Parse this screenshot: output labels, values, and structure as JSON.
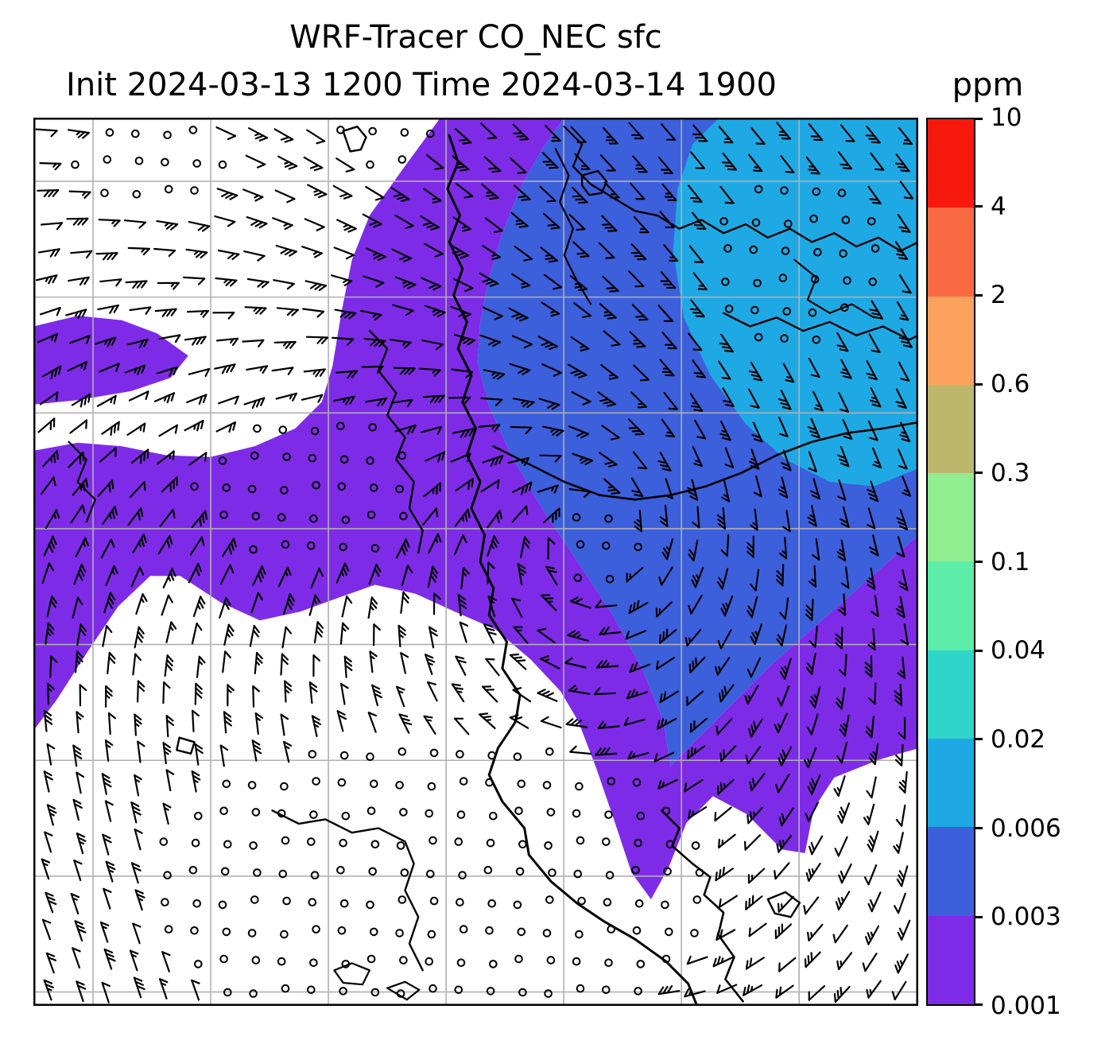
{
  "title": "WRF-Tracer CO_NEC sfc",
  "subtitle": "Init 2024-03-13 1200 Time 2024-03-14 1900",
  "colorbar": {
    "unit": "ppm",
    "levels": [
      "0.001",
      "0.003",
      "0.006",
      "0.02",
      "0.04",
      "0.1",
      "0.3",
      "0.6",
      "2",
      "4",
      "10"
    ],
    "colors": [
      "#7e2be8",
      "#3c5fdc",
      "#1fa9e4",
      "#2fd5c8",
      "#5ceea8",
      "#90ee90",
      "#bdb76b",
      "#fba25c",
      "#fa6a42",
      "#f8190d"
    ]
  },
  "chart_data": {
    "type": "heatmap",
    "subtype": "filled-contour-map-with-wind-barbs",
    "title": "WRF-Tracer CO_NEC sfc",
    "variable": "CO_NEC",
    "level": "sfc",
    "units": "ppm",
    "init_time": "2024-03-13 1200",
    "valid_time": "2024-03-14 1900",
    "contour_levels_ppm": [
      0.001,
      0.003,
      0.006,
      0.02,
      0.04,
      0.1,
      0.3,
      0.6,
      2,
      4,
      10
    ],
    "fill_colors": [
      "#7e2be8",
      "#3c5fdc",
      "#1fa9e4",
      "#2fd5c8",
      "#5ceea8",
      "#90ee90",
      "#bdb76b",
      "#fba25c",
      "#fa6a42",
      "#f8190d"
    ],
    "background_below_min": "#ffffff",
    "grid": {
      "x0": 0.0674,
      "dx": 0.133,
      "y0": 0.0716,
      "dy": 0.1304,
      "n_vertical": 8,
      "n_horizontal": 8,
      "color": "#b0b0b0"
    },
    "regions": [
      {
        "range": "0.001-0.003-main",
        "level_index": 0,
        "points": [
          [
            46,
            0
          ],
          [
            60,
            0
          ],
          [
            57.5,
            3.5
          ],
          [
            55,
            8
          ],
          [
            53,
            13
          ],
          [
            51.5,
            18
          ],
          [
            50.5,
            23
          ],
          [
            50.2,
            27.5
          ],
          [
            51.5,
            32.5
          ],
          [
            54,
            38
          ],
          [
            57.5,
            44
          ],
          [
            61.5,
            50
          ],
          [
            65.5,
            56
          ],
          [
            68.8,
            62
          ],
          [
            71.2,
            68
          ],
          [
            72,
            73
          ],
          [
            76.5,
            68.5
          ],
          [
            83.5,
            61.5
          ],
          [
            91.5,
            54.5
          ],
          [
            100,
            47
          ],
          [
            100,
            71
          ],
          [
            95.5,
            72.3
          ],
          [
            90.5,
            74.3
          ],
          [
            88.2,
            77.8
          ],
          [
            87.2,
            82.8
          ],
          [
            84.6,
            82.4
          ],
          [
            80.6,
            78.4
          ],
          [
            76.8,
            76.4
          ],
          [
            73.8,
            79.4
          ],
          [
            71.8,
            84.4
          ],
          [
            69.8,
            88
          ],
          [
            67.6,
            85
          ],
          [
            65.6,
            79
          ],
          [
            63.6,
            73.2
          ],
          [
            61.6,
            68
          ],
          [
            59.6,
            64.6
          ],
          [
            56.2,
            61
          ],
          [
            52.2,
            57.6
          ],
          [
            47.6,
            55.6
          ],
          [
            43.2,
            53.6
          ],
          [
            38.6,
            52.6
          ],
          [
            34.6,
            54
          ],
          [
            30.2,
            55.6
          ],
          [
            25.6,
            56.6
          ],
          [
            21.2,
            54.6
          ],
          [
            16.6,
            51.6
          ],
          [
            13.2,
            51.6
          ],
          [
            9.6,
            55
          ],
          [
            6.2,
            60
          ],
          [
            2.6,
            65.6
          ],
          [
            0,
            69
          ],
          [
            0,
            37.5
          ],
          [
            5,
            36.6
          ],
          [
            10,
            37
          ],
          [
            15,
            38
          ],
          [
            20,
            38.2
          ],
          [
            25,
            37
          ],
          [
            29.6,
            35
          ],
          [
            32.6,
            32
          ],
          [
            33.8,
            28
          ],
          [
            34.8,
            22
          ],
          [
            36,
            16
          ],
          [
            38,
            11
          ],
          [
            41.6,
            6
          ]
        ]
      },
      {
        "range": "0.001-0.003-west-band",
        "level_index": 0,
        "points": [
          [
            0,
            23.5
          ],
          [
            5,
            22.3
          ],
          [
            10,
            22.8
          ],
          [
            14,
            24.3
          ],
          [
            17.5,
            26.8
          ],
          [
            15.5,
            29.3
          ],
          [
            11,
            30.8
          ],
          [
            5,
            31.8
          ],
          [
            0,
            32.3
          ]
        ]
      },
      {
        "range": "0.003-0.006",
        "level_index": 1,
        "points": [
          [
            60,
            0
          ],
          [
            100,
            0
          ],
          [
            100,
            47
          ],
          [
            91.5,
            54.5
          ],
          [
            83.5,
            61.5
          ],
          [
            76.5,
            68.5
          ],
          [
            72,
            73
          ],
          [
            71.2,
            68
          ],
          [
            68.8,
            62
          ],
          [
            65.5,
            56
          ],
          [
            61.5,
            50
          ],
          [
            57.5,
            44
          ],
          [
            54,
            38
          ],
          [
            51.5,
            32.5
          ],
          [
            50.2,
            27.5
          ],
          [
            50.5,
            23
          ],
          [
            51.5,
            18
          ],
          [
            53,
            13
          ],
          [
            55,
            8
          ],
          [
            57.5,
            3.5
          ]
        ]
      },
      {
        "range": "0.006-0.02",
        "level_index": 2,
        "points": [
          [
            77.5,
            0
          ],
          [
            100,
            0
          ],
          [
            100,
            39.5
          ],
          [
            95,
            41.5
          ],
          [
            90,
            41
          ],
          [
            85,
            38.5
          ],
          [
            80.5,
            34.5
          ],
          [
            76.5,
            29
          ],
          [
            73.5,
            22.5
          ],
          [
            72.3,
            15
          ],
          [
            72.8,
            8
          ],
          [
            74.5,
            3
          ]
        ]
      }
    ],
    "coastlines": [
      {
        "closed": false,
        "w": 3,
        "pts": [
          [
            47,
            2
          ],
          [
            48,
            5
          ],
          [
            46.8,
            8
          ],
          [
            48.2,
            11
          ],
          [
            47,
            14
          ],
          [
            48.5,
            17
          ],
          [
            47.5,
            20
          ],
          [
            49,
            23
          ],
          [
            48,
            26
          ],
          [
            49.5,
            29
          ],
          [
            48.5,
            32
          ],
          [
            50,
            35
          ],
          [
            49,
            38
          ],
          [
            50.5,
            41
          ],
          [
            49.5,
            44
          ],
          [
            51,
            47
          ],
          [
            50.5,
            50
          ],
          [
            52,
            53
          ],
          [
            51.5,
            56
          ],
          [
            53.5,
            59
          ],
          [
            53,
            62
          ],
          [
            55,
            65
          ],
          [
            54.5,
            68
          ],
          [
            52.5,
            71
          ],
          [
            51.5,
            74
          ],
          [
            53,
            77
          ],
          [
            55.5,
            80
          ],
          [
            56,
            83
          ],
          [
            58.5,
            86
          ],
          [
            61.5,
            88.5
          ],
          [
            64.5,
            90.5
          ],
          [
            68,
            92.5
          ],
          [
            71.5,
            95
          ],
          [
            74,
            97.5
          ],
          [
            75,
            100
          ]
        ]
      },
      {
        "closed": false,
        "w": 2.4,
        "pts": [
          [
            60,
            1
          ],
          [
            62,
            3
          ],
          [
            61,
            5.5
          ],
          [
            63,
            7.5
          ],
          [
            65.5,
            9
          ],
          [
            68,
            10.5
          ],
          [
            70.5,
            11
          ],
          [
            73,
            12.5
          ],
          [
            75.5,
            11.5
          ],
          [
            78,
            13
          ],
          [
            80.5,
            12
          ],
          [
            83,
            13.5
          ],
          [
            85.5,
            12.5
          ],
          [
            88,
            14
          ],
          [
            90.5,
            13
          ],
          [
            93,
            14.5
          ],
          [
            95.5,
            13.5
          ],
          [
            98,
            15
          ],
          [
            100,
            14
          ]
        ]
      },
      {
        "closed": false,
        "w": 2.4,
        "pts": [
          [
            78,
            22
          ],
          [
            81,
            23.5
          ],
          [
            84,
            22.5
          ],
          [
            87,
            24
          ],
          [
            90,
            23
          ],
          [
            93,
            24.5
          ],
          [
            96,
            23.5
          ],
          [
            99,
            25
          ],
          [
            100,
            24.5
          ]
        ]
      },
      {
        "closed": true,
        "w": 2.4,
        "pts": [
          [
            62,
            6.5
          ],
          [
            63.8,
            6
          ],
          [
            64.8,
            7.2
          ],
          [
            64.2,
            8.5
          ],
          [
            62.8,
            8.7
          ],
          [
            62,
            7.6
          ]
        ]
      },
      {
        "closed": false,
        "w": 2.4,
        "pts": [
          [
            38,
            24
          ],
          [
            40,
            26
          ],
          [
            39,
            28.5
          ],
          [
            41,
            31
          ],
          [
            40,
            33.5
          ],
          [
            42,
            36
          ],
          [
            41,
            38.5
          ],
          [
            43,
            41
          ],
          [
            42.5,
            44
          ],
          [
            44,
            46.5
          ],
          [
            43.5,
            49
          ]
        ]
      },
      {
        "closed": false,
        "w": 2.2,
        "pts": [
          [
            4,
            36.5
          ],
          [
            6,
            38.5
          ],
          [
            5,
            41
          ],
          [
            7,
            43
          ],
          [
            6,
            45.5
          ]
        ]
      },
      {
        "closed": false,
        "w": 2.4,
        "pts": [
          [
            27,
            78
          ],
          [
            30,
            79.5
          ],
          [
            33,
            79
          ],
          [
            36,
            80.5
          ],
          [
            39,
            80
          ],
          [
            42,
            81.5
          ],
          [
            43,
            84
          ],
          [
            42,
            87
          ],
          [
            43.5,
            90
          ],
          [
            42.5,
            93
          ],
          [
            44,
            96
          ]
        ]
      },
      {
        "closed": true,
        "w": 2.4,
        "pts": [
          [
            16.5,
            69.8
          ],
          [
            18.2,
            70.3
          ],
          [
            17.8,
            71.6
          ],
          [
            16.2,
            71.2
          ]
        ]
      },
      {
        "closed": true,
        "w": 2.2,
        "pts": [
          [
            34,
            96
          ],
          [
            36,
            95.2
          ],
          [
            38,
            96
          ],
          [
            37.2,
            97.6
          ],
          [
            35,
            97.4
          ]
        ]
      },
      {
        "closed": true,
        "w": 2.2,
        "pts": [
          [
            40,
            98
          ],
          [
            42,
            97.3
          ],
          [
            43.6,
            98.2
          ],
          [
            42.2,
            99.3
          ]
        ]
      },
      {
        "closed": false,
        "w": 2.6,
        "pts": [
          [
            71,
            78
          ],
          [
            73,
            80
          ],
          [
            72.2,
            82
          ],
          [
            74.5,
            84
          ],
          [
            76.5,
            85.5
          ],
          [
            75.8,
            87.5
          ],
          [
            78,
            89.5
          ],
          [
            77.4,
            92
          ],
          [
            79.2,
            94.5
          ],
          [
            78.2,
            97
          ],
          [
            80.2,
            99.5
          ]
        ]
      },
      {
        "closed": true,
        "w": 2.4,
        "pts": [
          [
            83,
            88
          ],
          [
            85,
            87.2
          ],
          [
            86.6,
            88.4
          ],
          [
            85.6,
            90
          ],
          [
            83.8,
            89.6
          ]
        ]
      },
      {
        "closed": true,
        "w": 2.4,
        "pts": [
          [
            35,
            1.5
          ],
          [
            36.6,
            1
          ],
          [
            37.6,
            2.2
          ],
          [
            37,
            3.6
          ],
          [
            35.8,
            3.8
          ]
        ]
      },
      {
        "closed": false,
        "w": 2.2,
        "pts": [
          [
            59,
            3.5
          ],
          [
            60.5,
            6.5
          ],
          [
            59.5,
            9.5
          ],
          [
            61,
            12.5
          ],
          [
            60,
            15.5
          ],
          [
            61.5,
            18.5
          ],
          [
            63,
            21
          ]
        ]
      },
      {
        "closed": false,
        "w": 2.6,
        "pts": [
          [
            52,
            37
          ],
          [
            56,
            39
          ],
          [
            60,
            41
          ],
          [
            64,
            42.5
          ],
          [
            68,
            43
          ],
          [
            72,
            42.5
          ],
          [
            76,
            41.5
          ],
          [
            80,
            40
          ],
          [
            84,
            38
          ],
          [
            88,
            36.5
          ],
          [
            92,
            35.5
          ],
          [
            96,
            35
          ],
          [
            100,
            34.3
          ]
        ]
      },
      {
        "closed": false,
        "w": 2.2,
        "pts": [
          [
            86,
            16
          ],
          [
            88.5,
            18
          ],
          [
            87.5,
            20.5
          ],
          [
            90,
            22
          ],
          [
            92.5,
            21
          ],
          [
            95,
            22.5
          ]
        ]
      }
    ],
    "wind_barbs": {
      "grid_cols": 30,
      "grid_rows": 30,
      "staff_length": 26,
      "tick_length": 10,
      "vortex_center": [
        0.63,
        0.47
      ],
      "calm_symbol": "circle",
      "calm_zones": [
        [
          0.13,
          0.05,
          0.1,
          0.05
        ],
        [
          0.4,
          0.03,
          0.06,
          0.035
        ],
        [
          0.31,
          0.42,
          0.13,
          0.09
        ],
        [
          0.45,
          0.87,
          0.33,
          0.175
        ],
        [
          0.865,
          0.16,
          0.1,
          0.1
        ],
        [
          0.64,
          0.48,
          0.05,
          0.05
        ]
      ]
    }
  }
}
